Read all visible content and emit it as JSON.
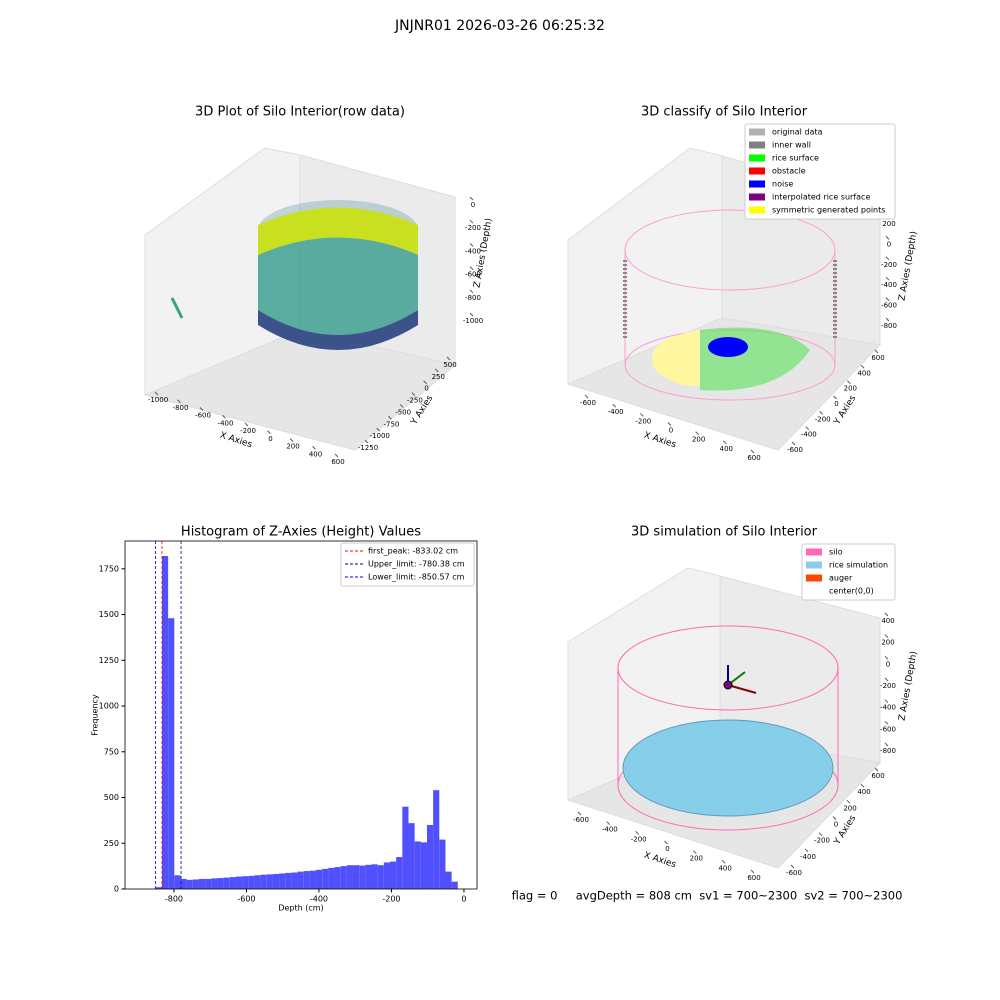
{
  "suptitle": "JNJNR01 2026-03-26 06:25:32",
  "footer": "flag = 0     avgDepth = 808 cm  sv1 = 700~2300  sv2 = 700~2300",
  "chart_data": [
    {
      "type": "scatter3d",
      "title": "3D Plot of Silo Interior(row data)",
      "xlabel": "X Axies",
      "ylabel": "Y Axies",
      "zlabel": "Z Axies (Depth)",
      "xticks": [
        -1000,
        -800,
        -600,
        -400,
        -200,
        0,
        200,
        400,
        600
      ],
      "yticks": [
        500,
        250,
        0,
        -250,
        -500,
        -750,
        -1000,
        -1250
      ],
      "zticks": [
        0,
        -200,
        -400,
        -600,
        -800,
        -1000
      ]
    },
    {
      "type": "scatter3d",
      "title": "3D classify of Silo Interior",
      "xlabel": "X Axies",
      "ylabel": "Y Axies",
      "zlabel": "Z Axies (Depth)",
      "xticks": [
        -600,
        -400,
        -200,
        0,
        200,
        400,
        600
      ],
      "yticks": [
        600,
        400,
        200,
        0,
        -200,
        -400,
        -600
      ],
      "zticks": [
        200,
        0,
        -200,
        -400,
        -600,
        -800
      ],
      "legend": [
        {
          "name": "original data",
          "color": "#b0b0b0"
        },
        {
          "name": "inner wall",
          "color": "#808080"
        },
        {
          "name": "rice surface",
          "color": "#00ff00"
        },
        {
          "name": "obstacle",
          "color": "#ff0000"
        },
        {
          "name": "noise",
          "color": "#0000ff"
        },
        {
          "name": "interpolated rice surface",
          "color": "#800080"
        },
        {
          "name": "symmetric generated points",
          "color": "#ffff00"
        }
      ]
    },
    {
      "type": "histogram",
      "title": "Histogram of Z-Axies (Height) Values",
      "xlabel": "Depth (cm)",
      "ylabel": "Frequency",
      "color": "#5050ff",
      "bins": [
        -850,
        -833,
        -816,
        -799,
        -782,
        -765,
        -748,
        -731,
        -714,
        -697,
        -680,
        -663,
        -646,
        -629,
        -612,
        -595,
        -578,
        -561,
        -544,
        -527,
        -510,
        -493,
        -476,
        -459,
        -442,
        -425,
        -408,
        -391,
        -374,
        -357,
        -340,
        -323,
        -306,
        -289,
        -272,
        -255,
        -238,
        -221,
        -204,
        -187,
        -170,
        -153,
        -136,
        -119,
        -102,
        -85,
        -68,
        -51,
        -34,
        -17,
        0
      ],
      "values": [
        10,
        1820,
        1480,
        75,
        55,
        50,
        52,
        55,
        55,
        58,
        60,
        62,
        65,
        68,
        70,
        72,
        75,
        78,
        80,
        82,
        85,
        88,
        90,
        95,
        98,
        100,
        105,
        110,
        115,
        120,
        125,
        130,
        130,
        128,
        132,
        135,
        130,
        145,
        150,
        175,
        450,
        360,
        260,
        255,
        350,
        540,
        270,
        95,
        40,
        0
      ],
      "xlim": [
        -935,
        36
      ],
      "ylim": [
        0,
        1902
      ],
      "xticks": [
        -800,
        -600,
        -400,
        -200,
        0
      ],
      "yticks": [
        0,
        250,
        500,
        750,
        1000,
        1250,
        1500,
        1750
      ],
      "vlines": [
        {
          "name": "first_peak: -833.02 cm",
          "value": -833.02,
          "color": "#ff0000"
        },
        {
          "name": "Upper_limit: -780.38 cm",
          "value": -780.38,
          "color": "#00008b"
        },
        {
          "name": "Lower_limit: -850.57 cm",
          "value": -850.57,
          "color": "#0000ff"
        }
      ]
    },
    {
      "type": "surface3d",
      "title": "3D simulation of Silo Interior",
      "xlabel": "X Axies",
      "ylabel": "Y Axies",
      "zlabel": "Z Axies (Depth)",
      "xticks": [
        -600,
        -400,
        -200,
        0,
        200,
        400,
        600
      ],
      "yticks": [
        600,
        400,
        200,
        0,
        -200,
        -400,
        -600
      ],
      "zticks": [
        400,
        200,
        0,
        -200,
        -400,
        -600,
        -800
      ],
      "legend": [
        {
          "name": "silo",
          "color": "#ff69b4"
        },
        {
          "name": "rice simulation",
          "color": "#87ceeb"
        },
        {
          "name": "auger",
          "color": "#ff4500"
        },
        {
          "name": "center(0,0)",
          "color": "#ffffff"
        }
      ]
    }
  ]
}
